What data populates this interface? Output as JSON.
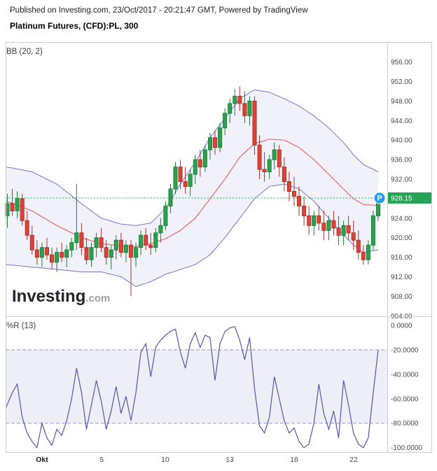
{
  "header": {
    "published_line": "Published on Investing.com, 23/Oct/2017 - 20:21:47 GMT, Powered by TradingView",
    "instrument_line": "Platinum Futures, (CFD):PL, 300"
  },
  "watermark": {
    "brand": "Investing",
    "suffix": ".com"
  },
  "marker": {
    "letter": "P",
    "color": "#2a9bf2"
  },
  "chart_data": [
    {
      "type": "candlestick",
      "title": "Platinum Futures, (CFD):PL, 300",
      "indicator_label": "BB (20, 2)",
      "last_price": 928.15,
      "ylim": [
        903.9,
        960.1
      ],
      "y_ticks": [
        956,
        952,
        948,
        944,
        940,
        936,
        932,
        928,
        924,
        920,
        916,
        912,
        908,
        904
      ],
      "tick_decimals": 2,
      "grid": false,
      "legend": "none",
      "x_ticks": [
        {
          "label": "Okt",
          "index": 7
        },
        {
          "label": "5",
          "index": 19
        },
        {
          "label": "10",
          "index": 32
        },
        {
          "label": "13",
          "index": 45
        },
        {
          "label": "18",
          "index": 58
        },
        {
          "label": "22",
          "index": 70
        }
      ],
      "candles": [
        [
          924.5,
          929,
          922,
          927
        ],
        [
          927,
          930,
          924.5,
          925.5
        ],
        [
          925.5,
          929.5,
          924,
          928
        ],
        [
          928,
          929,
          922.5,
          923.5
        ],
        [
          923.5,
          925.5,
          919.5,
          920.5
        ],
        [
          920.5,
          922.5,
          916.5,
          917.5
        ],
        [
          917.5,
          919.5,
          914.5,
          916
        ],
        [
          916,
          919,
          914,
          918
        ],
        [
          918,
          920,
          915.5,
          916.5
        ],
        [
          916.5,
          918,
          913.5,
          915
        ],
        [
          915,
          918,
          913,
          917
        ],
        [
          917,
          919,
          915,
          916
        ],
        [
          916,
          918.5,
          914,
          917.5
        ],
        [
          917.5,
          920,
          916,
          919
        ],
        [
          919,
          931,
          917.5,
          921
        ],
        [
          921,
          923,
          916.5,
          918
        ],
        [
          918,
          920,
          914.5,
          915.5
        ],
        [
          915.5,
          919,
          914,
          918
        ],
        [
          918,
          921,
          916,
          920
        ],
        [
          920,
          922,
          917,
          918
        ],
        [
          918,
          919.5,
          914.5,
          916
        ],
        [
          916,
          918.5,
          913.5,
          917.5
        ],
        [
          917.5,
          920.5,
          915.5,
          919.5
        ],
        [
          919.5,
          921,
          916,
          917
        ],
        [
          917,
          919.5,
          915,
          918.5
        ],
        [
          918.5,
          919.5,
          908,
          916
        ],
        [
          916,
          919,
          914,
          918
        ],
        [
          918,
          921.5,
          916.5,
          920.5
        ],
        [
          920.5,
          922,
          917.5,
          918.5
        ],
        [
          918.5,
          921,
          916.5,
          918
        ],
        [
          918,
          922,
          917,
          921
        ],
        [
          921,
          924,
          919,
          922.5
        ],
        [
          922.5,
          927.5,
          921.5,
          926.5
        ],
        [
          926.5,
          931,
          925,
          930
        ],
        [
          930,
          935.5,
          929,
          934.5
        ],
        [
          934.5,
          936,
          930,
          931.5
        ],
        [
          931.5,
          934.5,
          929,
          930.5
        ],
        [
          930.5,
          934,
          928.5,
          933
        ],
        [
          933,
          937,
          931,
          936
        ],
        [
          936,
          938,
          932.5,
          934.5
        ],
        [
          934.5,
          939,
          933.5,
          938
        ],
        [
          938,
          941.5,
          936,
          940.5
        ],
        [
          940.5,
          942,
          937,
          938.5
        ],
        [
          938.5,
          943.5,
          937.5,
          942.5
        ],
        [
          942.5,
          946.5,
          941,
          945.5
        ],
        [
          945.5,
          948.5,
          943.5,
          947.5
        ],
        [
          947.5,
          950.5,
          945,
          949
        ],
        [
          949,
          951,
          946,
          947.5
        ],
        [
          947.5,
          950,
          943.5,
          945
        ],
        [
          945,
          949,
          943,
          948
        ],
        [
          948,
          949,
          937,
          939
        ],
        [
          939,
          941,
          932,
          934
        ],
        [
          934,
          937.5,
          931.5,
          933.5
        ],
        [
          933.5,
          937,
          932,
          936
        ],
        [
          936,
          939.5,
          934,
          938
        ],
        [
          938,
          939,
          932.5,
          934.5
        ],
        [
          934.5,
          936.5,
          929.5,
          931.5
        ],
        [
          931.5,
          933.5,
          927.5,
          929.5
        ],
        [
          929.5,
          932.5,
          926.5,
          928.5
        ],
        [
          928.5,
          930.5,
          924.5,
          926.5
        ],
        [
          926.5,
          928.5,
          922.5,
          924.5
        ],
        [
          924.5,
          926.5,
          920.5,
          922.5
        ],
        [
          922.5,
          925.5,
          920.5,
          924.5
        ],
        [
          924.5,
          926.5,
          921.5,
          923
        ],
        [
          923,
          925.5,
          919.5,
          921.5
        ],
        [
          921.5,
          924.5,
          919.5,
          923.5
        ],
        [
          923.5,
          925.5,
          920.5,
          922
        ],
        [
          922,
          924.5,
          918.5,
          920.5
        ],
        [
          920.5,
          923.5,
          918.5,
          922.5
        ],
        [
          922.5,
          924.5,
          919.5,
          921
        ],
        [
          921,
          923.5,
          917.5,
          919.5
        ],
        [
          919.5,
          921.5,
          915.5,
          917
        ],
        [
          917,
          918.5,
          914.5,
          915.5
        ],
        [
          915.5,
          919.5,
          914.5,
          918.5
        ],
        [
          918.5,
          925.5,
          917.5,
          924.5
        ],
        [
          924.5,
          929,
          923.5,
          928.15
        ]
      ],
      "bollinger": {
        "period": 20,
        "stddev": 2,
        "keyframes": [
          [
            0,
            914.5,
            927.5,
            934.5
          ],
          [
            5,
            914,
            925.5,
            933.5
          ],
          [
            10,
            913.5,
            922.5,
            931
          ],
          [
            15,
            913,
            920,
            927
          ],
          [
            19,
            913,
            918.8,
            924
          ],
          [
            23,
            912,
            918.3,
            922.8
          ],
          [
            26,
            910,
            918.2,
            922.5
          ],
          [
            29,
            911,
            918.8,
            923
          ],
          [
            32,
            912.5,
            919.8,
            926
          ],
          [
            35,
            913.5,
            921.5,
            931
          ],
          [
            38,
            914.5,
            924,
            935.5
          ],
          [
            41,
            916.5,
            928,
            940.5
          ],
          [
            44,
            920,
            932,
            944.5
          ],
          [
            47,
            924,
            936.5,
            948.5
          ],
          [
            50,
            928,
            939.3,
            950.3
          ],
          [
            53,
            930.5,
            940.2,
            949.8
          ],
          [
            56,
            931,
            940,
            948.5
          ],
          [
            59,
            930,
            938.5,
            947
          ],
          [
            62,
            927.5,
            936,
            945
          ],
          [
            65,
            924,
            933,
            942.5
          ],
          [
            68,
            920.5,
            930,
            939.5
          ],
          [
            70,
            918.5,
            928,
            937
          ],
          [
            72,
            917,
            926.8,
            935
          ],
          [
            75,
            917.5,
            926.6,
            933.5
          ]
        ]
      },
      "colors": {
        "up": "#2ca24c",
        "up_border": "#1e7d39",
        "down": "#dd4337",
        "down_border": "#a8322a",
        "band_line": "#7676cf",
        "band_fill": "rgba(118,118,207,0.10)",
        "middle_line": "#e66a6a",
        "price_line": "#1da750",
        "price_label_bg": "#26a455",
        "border": "#cccccc"
      }
    },
    {
      "type": "line",
      "indicator_label": "%R (13)",
      "values": [
        -68,
        -55,
        -48,
        -75,
        -88,
        -95,
        -100,
        -80,
        -92,
        -98,
        -85,
        -90,
        -78,
        -60,
        -35,
        -55,
        -85,
        -65,
        -45,
        -62,
        -85,
        -70,
        -50,
        -72,
        -58,
        -78,
        -55,
        -22,
        -15,
        -42,
        -18,
        -12,
        -8,
        -5,
        -3,
        -22,
        -35,
        -15,
        -6,
        -18,
        -8,
        -10,
        -45,
        -15,
        -5,
        -2,
        -1,
        -12,
        -28,
        -10,
        -52,
        -82,
        -88,
        -75,
        -42,
        -60,
        -78,
        -88,
        -84,
        -95,
        -100,
        -97,
        -80,
        -48,
        -72,
        -85,
        -70,
        -92,
        -45,
        -65,
        -88,
        -97,
        -100,
        -92,
        -55,
        -20
      ],
      "levels": [
        -20,
        -80
      ],
      "ylim": [
        -104.2,
        7.4
      ],
      "y_ticks": [
        0,
        -20,
        -40,
        -60,
        -80,
        -100
      ],
      "tick_decimals": 4,
      "grid": false,
      "colors": {
        "line": "#5555ad",
        "fill": "rgba(117,117,184,0.12)",
        "level_line": "#9797bd",
        "border": "#cccccc"
      }
    }
  ]
}
